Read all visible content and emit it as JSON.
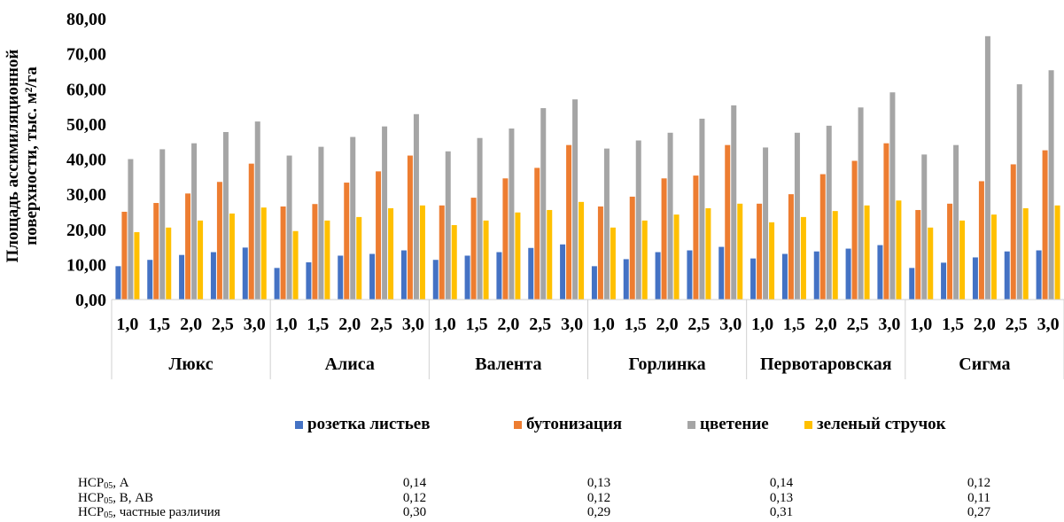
{
  "chart_data": {
    "type": "bar",
    "ylabel_line1": "Площадь ассимиляционной",
    "ylabel_line2": "поверхности, тыс. м²/га",
    "ylim": [
      0,
      80
    ],
    "yticks": [
      "0,00",
      "10,00",
      "20,00",
      "30,00",
      "40,00",
      "50,00",
      "60,00",
      "70,00",
      "80,00"
    ],
    "grid": false,
    "legend_position": "bottom",
    "groups": [
      "Люкс",
      "Алиса",
      "Валента",
      "Горлинка",
      "Первотаровская",
      "Сигма"
    ],
    "subcategories": [
      "1,0",
      "1,5",
      "2,0",
      "2,5",
      "3,0"
    ],
    "series": [
      {
        "name": "розетка листьев",
        "color": "#4472C4",
        "values": [
          9.5,
          11.3,
          12.7,
          13.5,
          14.8,
          9.0,
          10.6,
          12.5,
          13.0,
          14.0,
          11.3,
          12.5,
          13.5,
          14.7,
          15.7,
          9.5,
          11.5,
          13.5,
          14.0,
          15.0,
          11.7,
          13.0,
          13.7,
          14.5,
          15.5,
          9.0,
          10.5,
          12.0,
          13.7,
          14.0
        ]
      },
      {
        "name": "бутонизация",
        "color": "#ED7D31",
        "values": [
          25.0,
          27.5,
          30.2,
          33.5,
          38.7,
          26.5,
          27.2,
          33.3,
          36.5,
          41.0,
          26.8,
          29.0,
          34.5,
          37.5,
          44.0,
          26.5,
          29.3,
          34.5,
          35.3,
          44.0,
          27.3,
          30.0,
          35.7,
          39.5,
          44.5,
          25.5,
          27.3,
          33.7,
          38.5,
          42.5
        ]
      },
      {
        "name": "цветение",
        "color": "#A5A5A5",
        "values": [
          40.0,
          42.8,
          44.5,
          47.7,
          50.7,
          41.0,
          43.5,
          46.3,
          49.3,
          52.8,
          42.2,
          46.0,
          48.7,
          54.5,
          57.0,
          43.0,
          45.3,
          47.5,
          51.5,
          55.3,
          43.3,
          47.5,
          49.5,
          54.7,
          59.0,
          41.3,
          44.0,
          75.0,
          61.3,
          65.3
        ]
      },
      {
        "name": "зеленый стручок",
        "color": "#FFC000",
        "values": [
          19.2,
          20.5,
          22.5,
          24.5,
          26.2,
          19.5,
          22.5,
          23.5,
          26.0,
          26.8,
          21.2,
          22.5,
          24.8,
          25.5,
          27.8,
          20.5,
          22.5,
          24.2,
          26.0,
          27.3,
          22.0,
          23.5,
          25.2,
          26.8,
          28.2,
          20.5,
          22.5,
          24.2,
          26.0,
          26.8
        ]
      }
    ]
  },
  "nsr": {
    "rows": [
      {
        "prefix": "НСР",
        "sub": "05",
        "suffix": ", А",
        "values": [
          "0,14",
          "0,13",
          "0,14",
          "0,12"
        ]
      },
      {
        "prefix": "НСР",
        "sub": "05",
        "suffix": ", В, АВ",
        "values": [
          "0,12",
          "0,12",
          "0,13",
          "0,11"
        ]
      },
      {
        "prefix": "НСР",
        "sub": "05",
        "suffix": ", частные различия",
        "values": [
          "0,30",
          "0,29",
          "0,31",
          "0,27"
        ]
      }
    ]
  }
}
